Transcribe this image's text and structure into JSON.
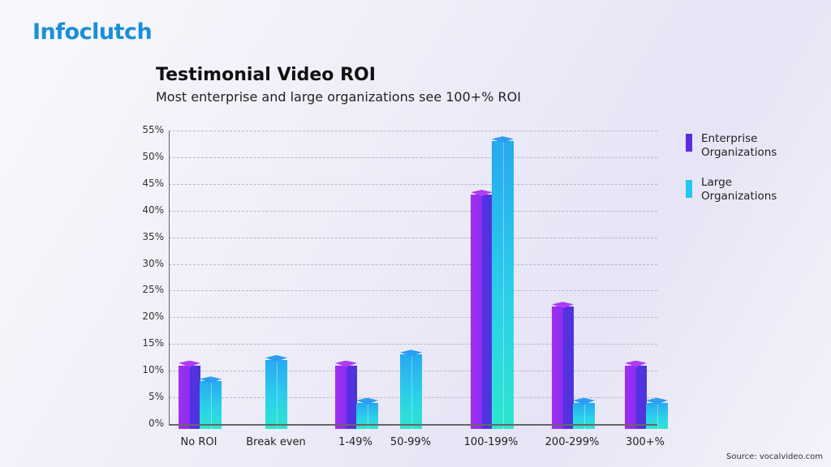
{
  "brand": {
    "logo_text": "Infoclutch"
  },
  "header": {
    "title": "Testimonial Video ROI",
    "subtitle": "Most enterprise and large organizations see 100+% ROI"
  },
  "legend": {
    "items": [
      {
        "label": "Enterprise Organizations",
        "line1": "Enterprise",
        "line2": "Organizations",
        "color": "#5b2be0"
      },
      {
        "label": "Large Organizations",
        "line1": "Large",
        "line2": "Organizations",
        "color": "#22c8f0"
      }
    ]
  },
  "source": "Source: vocalvideo.com",
  "chart_data": {
    "type": "bar",
    "title": "Testimonial Video ROI",
    "subtitle": "Most enterprise and large organizations see 100+% ROI",
    "xlabel": "",
    "ylabel": "",
    "ylim": [
      0,
      55
    ],
    "yticks": [
      "0%",
      "5%",
      "10%",
      "15%",
      "20%",
      "25%",
      "30%",
      "35%",
      "40%",
      "45%",
      "50%",
      "55%"
    ],
    "grid": true,
    "legend_position": "right",
    "categories": [
      "No ROI",
      "Break even",
      "1-49%",
      "50-99%",
      "100-199%",
      "200-299%",
      "300+%"
    ],
    "series": [
      {
        "name": "Enterprise Organizations",
        "color": "#5b2be0",
        "values": [
          11,
          0,
          11,
          0,
          43,
          22,
          11
        ]
      },
      {
        "name": "Large Organizations",
        "color": "#22c8f0",
        "values": [
          8,
          12,
          4,
          13,
          53,
          4,
          4
        ]
      }
    ],
    "annotations": [
      "Source: vocalvideo.com"
    ]
  }
}
